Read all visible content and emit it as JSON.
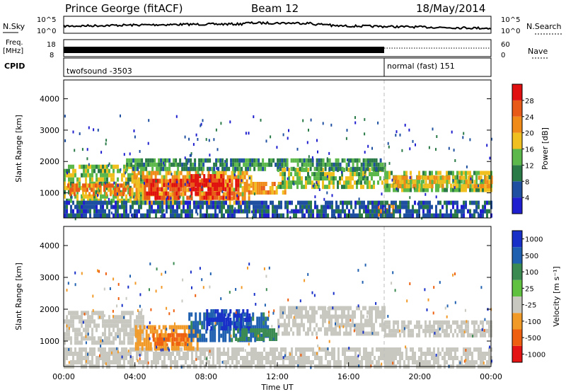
{
  "header": {
    "station": "Prince George (fitACF)",
    "beam": "Beam 12",
    "date": "18/May/2014"
  },
  "noise_panel": {
    "left_label": "N.Sky",
    "left_ticks": [
      "10^5",
      "10^0"
    ],
    "right_label": "N.Search",
    "right_ticks": [
      "10^5",
      "10^0"
    ]
  },
  "freq_panel": {
    "left_label_1": "Freq.",
    "left_label_2": "[MHz]",
    "left_ticks": [
      "18",
      "8"
    ],
    "right_label": "Nave",
    "right_ticks": [
      "60",
      "0"
    ]
  },
  "cpid_panel": {
    "label": "CPID",
    "segments": [
      {
        "name": "twofsound -3503",
        "start_hour": 0,
        "end_hour": 18
      },
      {
        "name": "normal (fast) 151",
        "start_hour": 18,
        "end_hour": 24
      }
    ]
  },
  "colors": {
    "power": [
      "#1f1fd0",
      "#1e4fa0",
      "#2a7a48",
      "#5cb84a",
      "#f0c020",
      "#f08a18",
      "#e85a18",
      "#e01010"
    ],
    "velocity": [
      "#e41414",
      "#ee6010",
      "#f29a28",
      "#c8c8c0",
      "#60c040",
      "#3a8a52",
      "#2060b0",
      "#1830c8"
    ]
  },
  "chart_data": [
    {
      "type": "heatmap",
      "name": "power",
      "ylabel": "Slant Range [km]",
      "yticks": [
        "1000",
        "2000",
        "3000",
        "4000"
      ],
      "ylim": [
        200,
        4600
      ],
      "xlim": [
        0,
        24
      ],
      "colorbar": {
        "label": "Power [dB]",
        "ticks": [
          "4",
          "8",
          "12",
          "16",
          "20",
          "24",
          "28"
        ],
        "range": [
          0,
          30
        ]
      },
      "regions": [
        {
          "t0": 0.0,
          "t1": 4.5,
          "r0": 800,
          "r1": 1900,
          "value": 14
        },
        {
          "t0": 0.2,
          "t1": 3.8,
          "r0": 950,
          "r1": 1300,
          "value": 22
        },
        {
          "t0": 3.8,
          "t1": 10.5,
          "r0": 700,
          "r1": 1700,
          "value": 18
        },
        {
          "t0": 4.5,
          "t1": 9.8,
          "r0": 800,
          "r1": 1450,
          "value": 26
        },
        {
          "t0": 7.0,
          "t1": 9.0,
          "r0": 1100,
          "r1": 1600,
          "value": 28
        },
        {
          "t0": 3.5,
          "t1": 12.5,
          "r0": 1700,
          "r1": 2100,
          "value": 10
        },
        {
          "t0": 10.0,
          "t1": 12.5,
          "r0": 950,
          "r1": 1350,
          "value": 20
        },
        {
          "t0": 12.0,
          "t1": 18.0,
          "r0": 1200,
          "r1": 1800,
          "value": 14
        },
        {
          "t0": 12.5,
          "t1": 18.0,
          "r0": 1700,
          "r1": 2100,
          "value": 10
        },
        {
          "t0": 18.0,
          "t1": 24.0,
          "r0": 1100,
          "r1": 1700,
          "value": 14
        },
        {
          "t0": 18.5,
          "t1": 24.0,
          "r0": 1250,
          "r1": 1550,
          "value": 18
        },
        {
          "t0": 17.5,
          "t1": 18.5,
          "r0": 350,
          "r1": 650,
          "value": 22
        },
        {
          "t0": 0.0,
          "t1": 24.0,
          "r0": 250,
          "r1": 750,
          "value": 6
        }
      ]
    },
    {
      "type": "heatmap",
      "name": "velocity",
      "ylabel": "Slant Range [km]",
      "yticks": [
        "1000",
        "2000",
        "3000",
        "4000"
      ],
      "ylim": [
        200,
        4600
      ],
      "xlim": [
        0,
        24
      ],
      "colorbar": {
        "label": "Velocity [m s⁻¹]",
        "ticks": [
          "-1000",
          "-500",
          "-100",
          "-25",
          "25",
          "100",
          "500",
          "1000"
        ]
      },
      "regions": [
        {
          "t0": 0.0,
          "t1": 24.0,
          "r0": 250,
          "r1": 800,
          "value": 0
        },
        {
          "t0": 0.0,
          "t1": 4.5,
          "r0": 900,
          "r1": 1950,
          "value": 0
        },
        {
          "t0": 12.0,
          "t1": 18.0,
          "r0": 1200,
          "r1": 2100,
          "value": 0
        },
        {
          "t0": 18.0,
          "t1": 24.0,
          "r0": 1200,
          "r1": 1650,
          "value": 0
        },
        {
          "t0": 4.0,
          "t1": 7.5,
          "r0": 750,
          "r1": 1500,
          "value": -300
        },
        {
          "t0": 5.0,
          "t1": 7.0,
          "r0": 850,
          "r1": 1250,
          "value": -700
        },
        {
          "t0": 7.0,
          "t1": 11.5,
          "r0": 1000,
          "r1": 1900,
          "value": 150
        },
        {
          "t0": 8.0,
          "t1": 10.5,
          "r0": 1400,
          "r1": 2000,
          "value": 600
        },
        {
          "t0": 9.5,
          "t1": 12.0,
          "r0": 1050,
          "r1": 1400,
          "value": 60
        }
      ]
    }
  ],
  "xaxis": {
    "label": "Time UT",
    "ticks": [
      "00:00",
      "04:00",
      "08:00",
      "12:00",
      "16:00",
      "20:00",
      "00:00"
    ]
  }
}
